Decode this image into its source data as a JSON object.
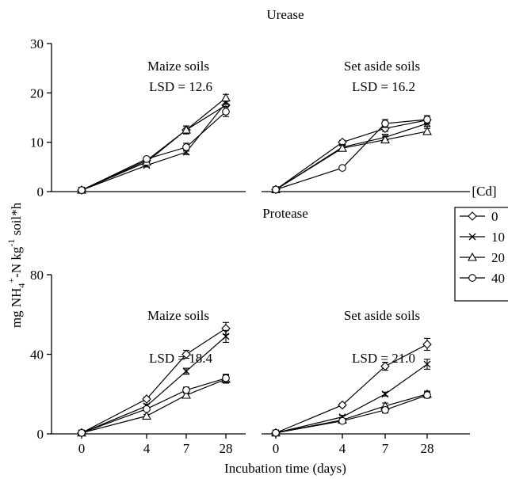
{
  "figure": {
    "ylabel": {
      "pre": "mg NH",
      "sub": "4",
      "sup1": "+",
      "mid": "-N kg",
      "sup2": "-1",
      "post": " soil*h"
    },
    "xlabel": "Incubation time (days)",
    "legend": {
      "title": "[Cd]",
      "placement": "right",
      "entries": [
        "0",
        "10",
        "20",
        "40"
      ]
    }
  },
  "chart_data": [
    {
      "type": "line",
      "title": "Urease",
      "panel": "Maize soils",
      "annotation": "LSD = 12.6",
      "x": [
        "0",
        "4",
        "7",
        "28"
      ],
      "ylim": [
        0,
        30
      ],
      "yticks": [
        "0",
        "10",
        "20",
        "30"
      ],
      "series": [
        {
          "name": "0",
          "marker": "diamond",
          "values": [
            0.3,
            6.3,
            12.5,
            17.5
          ],
          "err": [
            0,
            0.3,
            0.8,
            1.0
          ]
        },
        {
          "name": "10",
          "marker": "x",
          "values": [
            0.3,
            5.3,
            8.0,
            18.0
          ],
          "err": [
            0,
            0.3,
            0.5,
            0.8
          ]
        },
        {
          "name": "20",
          "marker": "triangle",
          "values": [
            0.3,
            6.0,
            12.5,
            19.0
          ],
          "err": [
            0,
            0.3,
            0.8,
            0.7
          ]
        },
        {
          "name": "40",
          "marker": "circle",
          "values": [
            0.3,
            6.6,
            9.0,
            16.2
          ],
          "err": [
            0,
            0.3,
            0.8,
            1.0
          ]
        }
      ]
    },
    {
      "type": "line",
      "title": "",
      "panel": "Set aside soils",
      "annotation": "LSD = 16.2",
      "x": [
        "0",
        "4",
        "7",
        "28"
      ],
      "ylim": [
        0,
        30
      ],
      "yticks": [],
      "series": [
        {
          "name": "0",
          "marker": "diamond",
          "values": [
            0.4,
            10.0,
            12.8,
            14.5
          ],
          "err": [
            0,
            0.4,
            0.6,
            0.6
          ]
        },
        {
          "name": "10",
          "marker": "x",
          "values": [
            0.4,
            9.0,
            11.0,
            13.8
          ],
          "err": [
            0,
            0.5,
            0.6,
            0.6
          ]
        },
        {
          "name": "20",
          "marker": "triangle",
          "values": [
            0.4,
            8.8,
            10.5,
            12.2
          ],
          "err": [
            0,
            0.5,
            0.6,
            0.6
          ]
        },
        {
          "name": "40",
          "marker": "circle",
          "values": [
            0.4,
            4.8,
            13.8,
            14.6
          ],
          "err": [
            0,
            0.3,
            0.8,
            0.8
          ]
        }
      ]
    },
    {
      "type": "line",
      "title": "Protease",
      "panel": "Maize soils",
      "annotation": "LSD = 18.4",
      "x": [
        "0",
        "4",
        "7",
        "28"
      ],
      "ylim": [
        0,
        80
      ],
      "yticks": [
        "0",
        "40",
        "80"
      ],
      "series": [
        {
          "name": "0",
          "marker": "diamond",
          "values": [
            0.5,
            17.5,
            40.0,
            53.0
          ],
          "err": [
            0,
            1.0,
            2.0,
            3.0
          ]
        },
        {
          "name": "10",
          "marker": "x",
          "values": [
            0.5,
            14.0,
            31.5,
            49.0
          ],
          "err": [
            0,
            1.0,
            1.5,
            3.0
          ]
        },
        {
          "name": "20",
          "marker": "triangle",
          "values": [
            0.5,
            9.0,
            19.5,
            27.5
          ],
          "err": [
            0,
            0.8,
            1.5,
            2.0
          ]
        },
        {
          "name": "40",
          "marker": "circle",
          "values": [
            0.5,
            12.5,
            22.0,
            28.0
          ],
          "err": [
            0,
            0.8,
            1.5,
            2.0
          ]
        }
      ]
    },
    {
      "type": "line",
      "title": "",
      "panel": "Set aside soils",
      "annotation": "LSD = 21.0",
      "x": [
        "0",
        "4",
        "7",
        "28"
      ],
      "ylim": [
        0,
        80
      ],
      "yticks": [],
      "series": [
        {
          "name": "0",
          "marker": "diamond",
          "values": [
            0.5,
            14.5,
            34.0,
            45.0
          ],
          "err": [
            0,
            0.8,
            2.0,
            3.0
          ]
        },
        {
          "name": "10",
          "marker": "x",
          "values": [
            0.5,
            8.5,
            20.0,
            35.0
          ],
          "err": [
            0,
            0.8,
            1.0,
            2.5
          ]
        },
        {
          "name": "20",
          "marker": "triangle",
          "values": [
            0.5,
            7.0,
            14.0,
            20.0
          ],
          "err": [
            0,
            0.8,
            1.5,
            1.5
          ]
        },
        {
          "name": "40",
          "marker": "circle",
          "values": [
            0.5,
            6.5,
            12.0,
            19.5
          ],
          "err": [
            0,
            0.8,
            1.5,
            1.5
          ]
        }
      ]
    }
  ]
}
